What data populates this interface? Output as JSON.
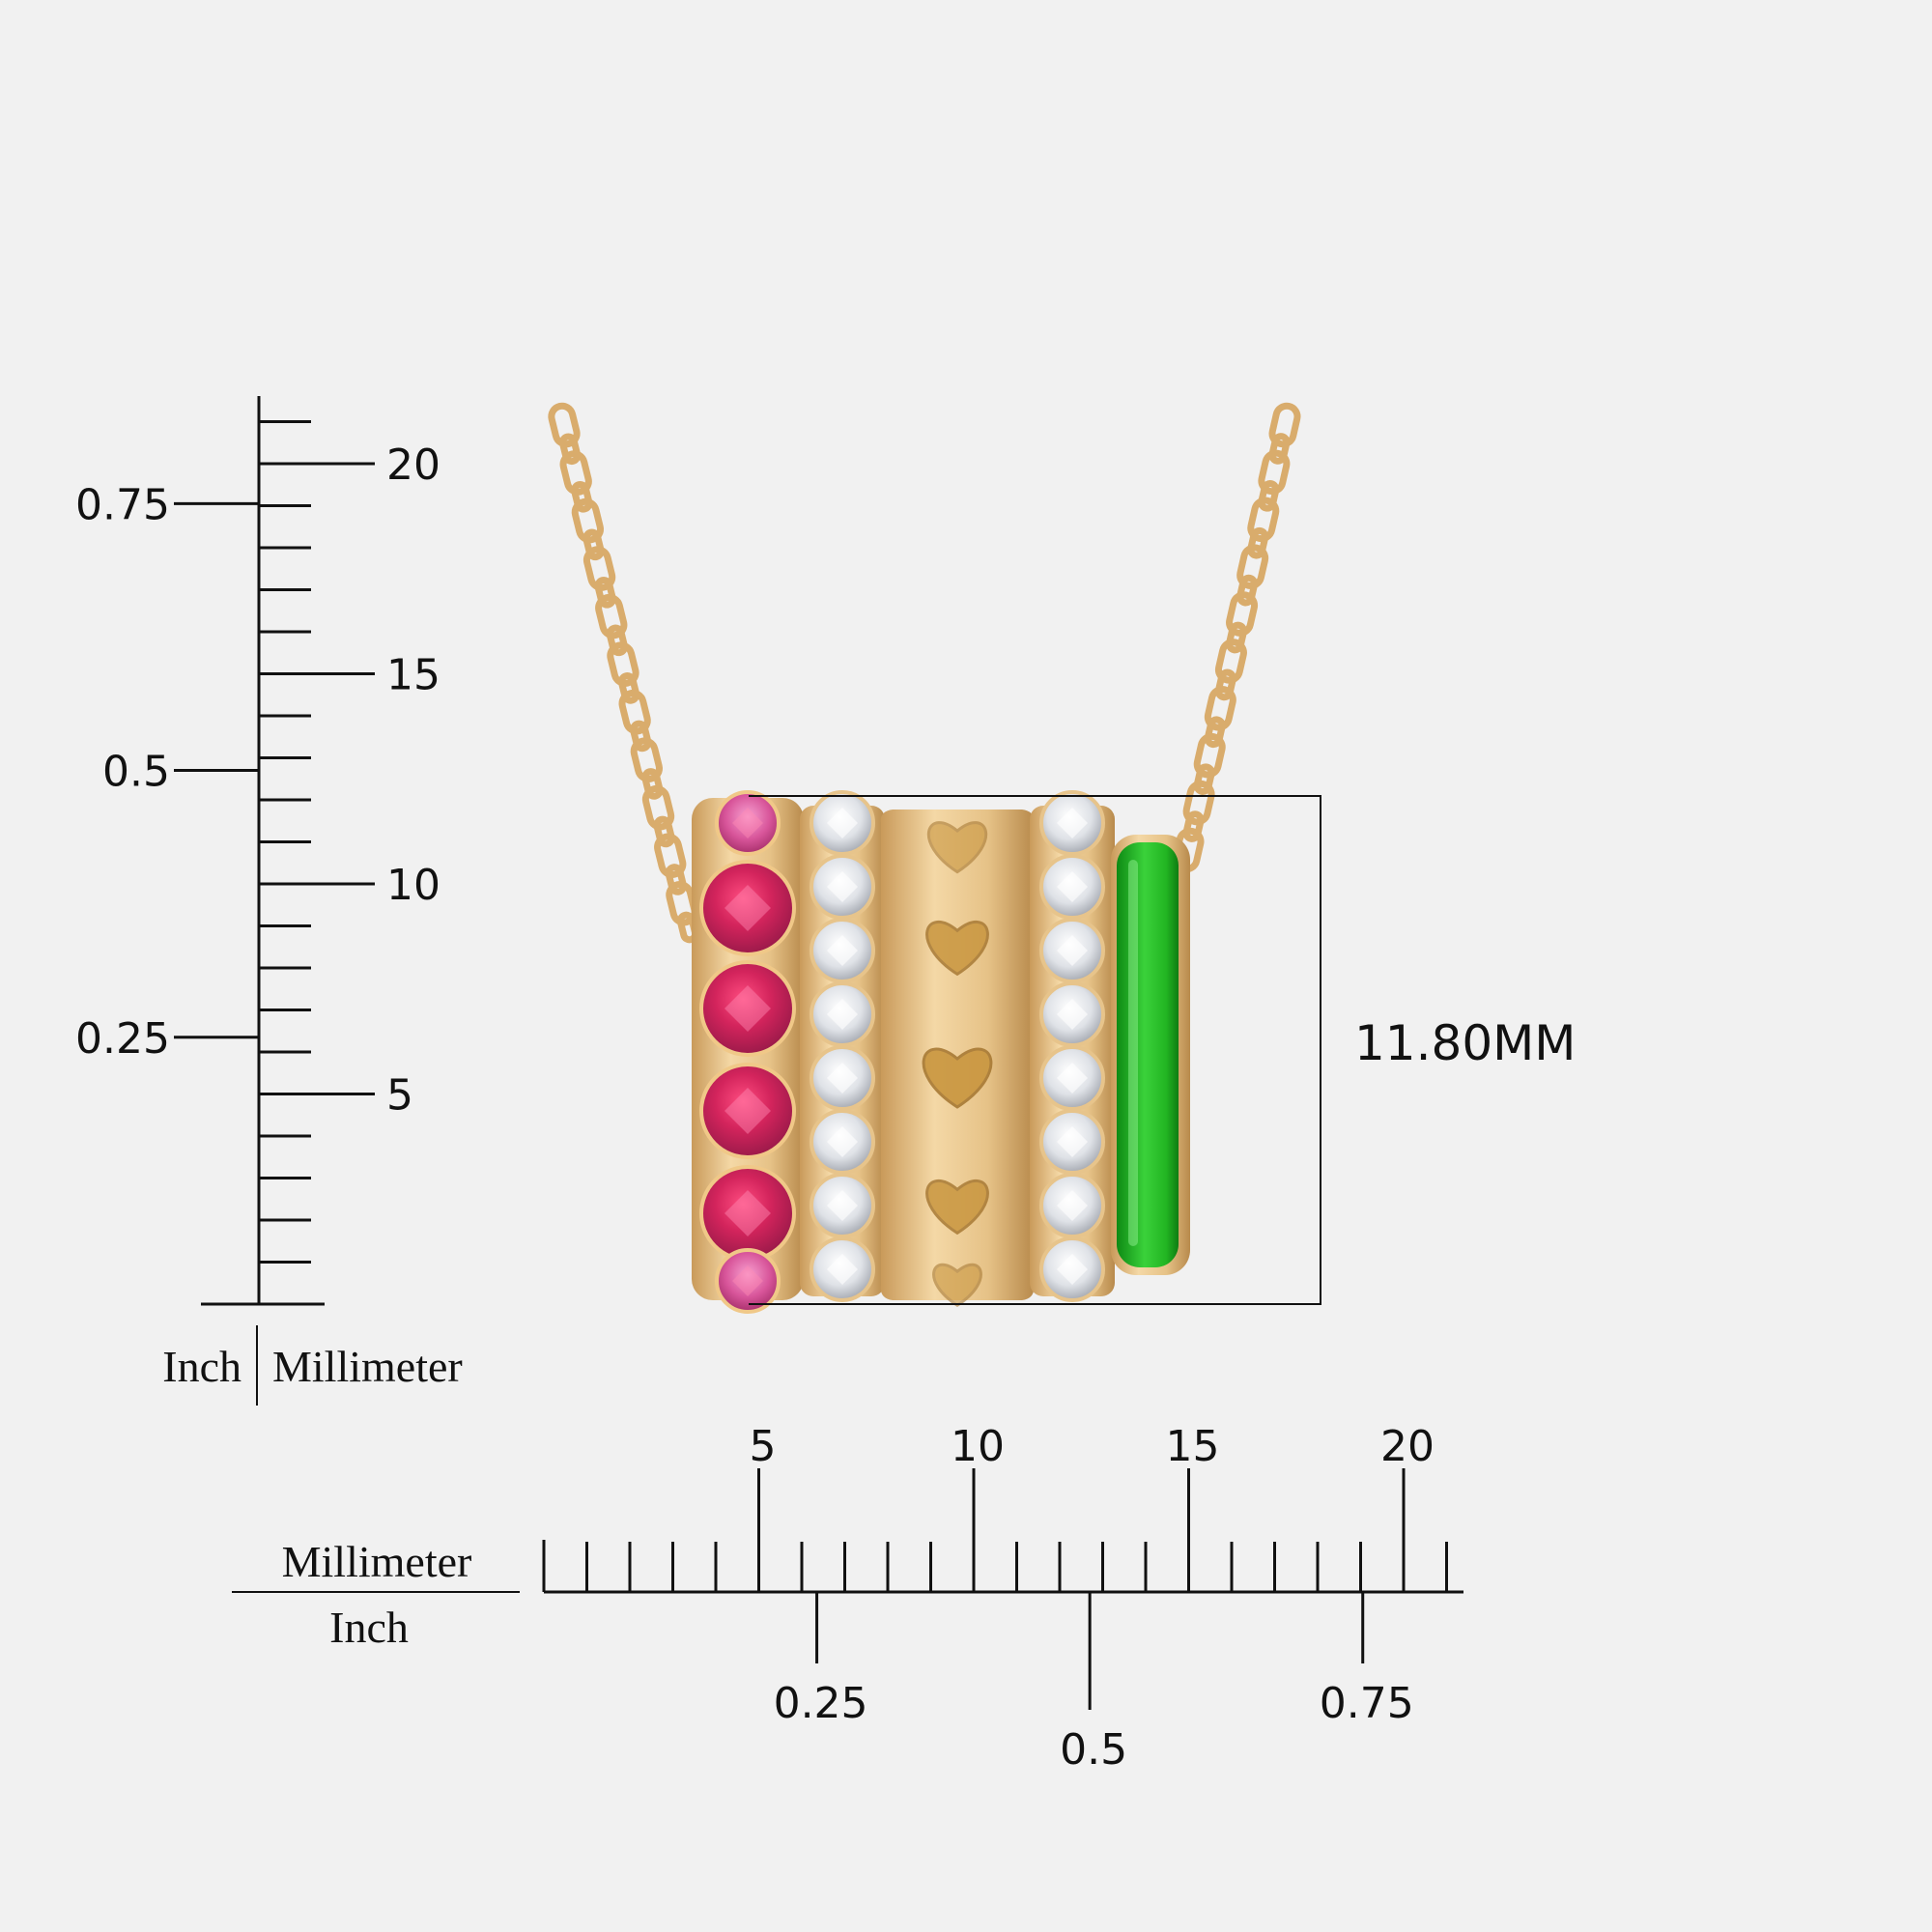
{
  "colors": {
    "background": "#f1f1f1",
    "ink": "#111111",
    "gold": "#e8c48c",
    "gold_dark": "#b88a4c",
    "ruby": "#d3245c",
    "ruby_light": "#f06aa0",
    "diamond": "#e4e6ea",
    "enamel_green": "#1fb81f"
  },
  "dimension": {
    "label": "11.80MM",
    "value_mm": 11.8
  },
  "vertical_ruler": {
    "unit_left": "Inch",
    "unit_right": "Millimeter",
    "mm_labels": [
      "20",
      "15",
      "10",
      "5"
    ],
    "mm_values": [
      20,
      15,
      10,
      5
    ],
    "inch_labels": [
      "0.75",
      "0.5",
      "0.25"
    ],
    "inch_values": [
      0.75,
      0.5,
      0.25
    ],
    "max_mm": 21
  },
  "horizontal_ruler": {
    "unit_top": "Millimeter",
    "unit_bottom": "Inch",
    "mm_labels": [
      "5",
      "10",
      "15",
      "20"
    ],
    "mm_values": [
      5,
      10,
      15,
      20
    ],
    "inch_labels": [
      "0.25",
      "0.5",
      "0.75"
    ],
    "inch_values": [
      0.25,
      0.5,
      0.75
    ],
    "max_mm": 21
  },
  "pendant": {
    "parts": [
      "pink-sapphire-row",
      "diamond-row",
      "gold-heart-band",
      "diamond-row",
      "green-enamel-ring"
    ],
    "stone_count_per_row": 6
  }
}
